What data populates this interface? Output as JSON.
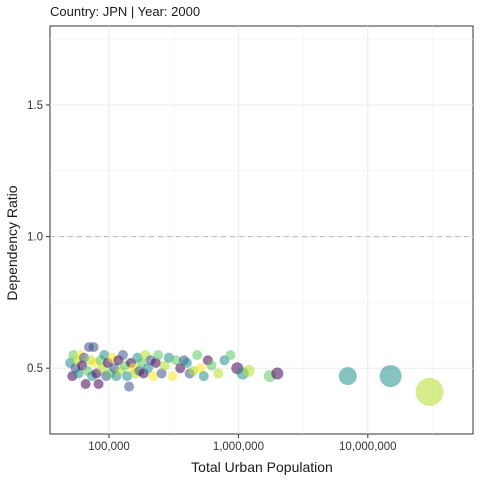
{
  "chart_data": {
    "type": "scatter",
    "title": "Country: JPN | Year: 2000",
    "xlabel": "Total Urban Population",
    "ylabel": "Dependency Ratio",
    "x_scale": "log10",
    "xlim": [
      35000,
      65000000
    ],
    "ylim": [
      0.25,
      1.8
    ],
    "x_ticks": [
      100000,
      1000000,
      10000000
    ],
    "x_tick_labels": [
      "100,000",
      "1,000,000",
      "10,000,000"
    ],
    "y_ticks": [
      0.5,
      1.0,
      1.5
    ],
    "y_tick_labels": [
      "0.5",
      "1.0",
      "1.5"
    ],
    "reference_line": {
      "y": 1.0,
      "style": "dashed",
      "color": "#bbbbbb"
    },
    "grid": true,
    "legend": "none",
    "colors": [
      "#440154",
      "#3b528b",
      "#21908d",
      "#5dc863",
      "#b5de2b",
      "#fde725"
    ],
    "points": [
      {
        "x": 50000,
        "y": 0.52,
        "size": 5,
        "c": 2
      },
      {
        "x": 52000,
        "y": 0.47,
        "size": 5,
        "c": 0
      },
      {
        "x": 53000,
        "y": 0.55,
        "size": 5,
        "c": 3
      },
      {
        "x": 55000,
        "y": 0.5,
        "size": 5,
        "c": 1
      },
      {
        "x": 57000,
        "y": 0.53,
        "size": 5,
        "c": 4
      },
      {
        "x": 58000,
        "y": 0.48,
        "size": 5,
        "c": 2
      },
      {
        "x": 60000,
        "y": 0.55,
        "size": 5,
        "c": 5
      },
      {
        "x": 62000,
        "y": 0.51,
        "size": 5,
        "c": 0
      },
      {
        "x": 64000,
        "y": 0.54,
        "size": 5,
        "c": 1
      },
      {
        "x": 66000,
        "y": 0.44,
        "size": 5,
        "c": 0
      },
      {
        "x": 68000,
        "y": 0.49,
        "size": 5,
        "c": 3
      },
      {
        "x": 70000,
        "y": 0.58,
        "size": 5,
        "c": 1
      },
      {
        "x": 72000,
        "y": 0.53,
        "size": 5,
        "c": 4
      },
      {
        "x": 74000,
        "y": 0.47,
        "size": 5,
        "c": 2
      },
      {
        "x": 76000,
        "y": 0.58,
        "size": 5,
        "c": 1
      },
      {
        "x": 78000,
        "y": 0.52,
        "size": 5,
        "c": 5
      },
      {
        "x": 80000,
        "y": 0.48,
        "size": 5,
        "c": 0
      },
      {
        "x": 83000,
        "y": 0.44,
        "size": 5,
        "c": 0
      },
      {
        "x": 86000,
        "y": 0.53,
        "size": 5,
        "c": 3
      },
      {
        "x": 89000,
        "y": 0.5,
        "size": 5,
        "c": 4
      },
      {
        "x": 92000,
        "y": 0.55,
        "size": 5,
        "c": 2
      },
      {
        "x": 95000,
        "y": 0.47,
        "size": 5,
        "c": 1
      },
      {
        "x": 98000,
        "y": 0.52,
        "size": 5,
        "c": 0
      },
      {
        "x": 102000,
        "y": 0.48,
        "size": 5,
        "c": 3
      },
      {
        "x": 106000,
        "y": 0.54,
        "size": 5,
        "c": 5
      },
      {
        "x": 110000,
        "y": 0.5,
        "size": 5,
        "c": 1
      },
      {
        "x": 114000,
        "y": 0.47,
        "size": 5,
        "c": 2
      },
      {
        "x": 118000,
        "y": 0.53,
        "size": 5,
        "c": 0
      },
      {
        "x": 123000,
        "y": 0.49,
        "size": 5,
        "c": 4
      },
      {
        "x": 128000,
        "y": 0.55,
        "size": 5,
        "c": 1
      },
      {
        "x": 133000,
        "y": 0.51,
        "size": 5,
        "c": 3
      },
      {
        "x": 138000,
        "y": 0.47,
        "size": 5,
        "c": 2
      },
      {
        "x": 143000,
        "y": 0.43,
        "size": 5,
        "c": 1
      },
      {
        "x": 148000,
        "y": 0.52,
        "size": 5,
        "c": 0
      },
      {
        "x": 154000,
        "y": 0.5,
        "size": 5,
        "c": 5
      },
      {
        "x": 160000,
        "y": 0.48,
        "size": 5,
        "c": 4
      },
      {
        "x": 166000,
        "y": 0.54,
        "size": 5,
        "c": 2
      },
      {
        "x": 172000,
        "y": 0.49,
        "size": 5,
        "c": 1
      },
      {
        "x": 178000,
        "y": 0.52,
        "size": 5,
        "c": 3
      },
      {
        "x": 185000,
        "y": 0.48,
        "size": 5,
        "c": 0
      },
      {
        "x": 192000,
        "y": 0.55,
        "size": 5,
        "c": 4
      },
      {
        "x": 200000,
        "y": 0.5,
        "size": 5,
        "c": 2
      },
      {
        "x": 210000,
        "y": 0.53,
        "size": 5,
        "c": 1
      },
      {
        "x": 220000,
        "y": 0.47,
        "size": 5,
        "c": 5
      },
      {
        "x": 230000,
        "y": 0.52,
        "size": 5,
        "c": 0
      },
      {
        "x": 240000,
        "y": 0.55,
        "size": 5,
        "c": 3
      },
      {
        "x": 255000,
        "y": 0.48,
        "size": 5,
        "c": 1
      },
      {
        "x": 270000,
        "y": 0.51,
        "size": 5,
        "c": 4
      },
      {
        "x": 290000,
        "y": 0.54,
        "size": 5,
        "c": 2
      },
      {
        "x": 310000,
        "y": 0.47,
        "size": 5,
        "c": 5
      },
      {
        "x": 330000,
        "y": 0.53,
        "size": 5,
        "c": 3
      },
      {
        "x": 355000,
        "y": 0.5,
        "size": 5,
        "c": 0
      },
      {
        "x": 380000,
        "y": 0.53,
        "size": 5,
        "c": 1
      },
      {
        "x": 400000,
        "y": 0.52,
        "size": 5,
        "c": 2
      },
      {
        "x": 420000,
        "y": 0.48,
        "size": 5,
        "c": 1
      },
      {
        "x": 450000,
        "y": 0.49,
        "size": 5,
        "c": 4
      },
      {
        "x": 480000,
        "y": 0.55,
        "size": 5,
        "c": 3
      },
      {
        "x": 510000,
        "y": 0.5,
        "size": 5,
        "c": 5
      },
      {
        "x": 540000,
        "y": 0.47,
        "size": 5,
        "c": 2
      },
      {
        "x": 580000,
        "y": 0.53,
        "size": 5,
        "c": 0
      },
      {
        "x": 620000,
        "y": 0.51,
        "size": 5,
        "c": 3
      },
      {
        "x": 700000,
        "y": 0.48,
        "size": 5,
        "c": 4
      },
      {
        "x": 780000,
        "y": 0.53,
        "size": 5,
        "c": 2
      },
      {
        "x": 870000,
        "y": 0.55,
        "size": 5,
        "c": 3
      },
      {
        "x": 980000,
        "y": 0.5,
        "size": 6,
        "c": 0
      },
      {
        "x": 1080000,
        "y": 0.48,
        "size": 6,
        "c": 2
      },
      {
        "x": 1200000,
        "y": 0.49,
        "size": 6,
        "c": 4
      },
      {
        "x": 1750000,
        "y": 0.47,
        "size": 6,
        "c": 3
      },
      {
        "x": 2000000,
        "y": 0.48,
        "size": 6,
        "c": 0
      },
      {
        "x": 7000000,
        "y": 0.47,
        "size": 9,
        "c": 2
      },
      {
        "x": 15000000,
        "y": 0.47,
        "size": 11,
        "c": 2
      },
      {
        "x": 30000000,
        "y": 0.41,
        "size": 14,
        "c": 4
      }
    ]
  }
}
